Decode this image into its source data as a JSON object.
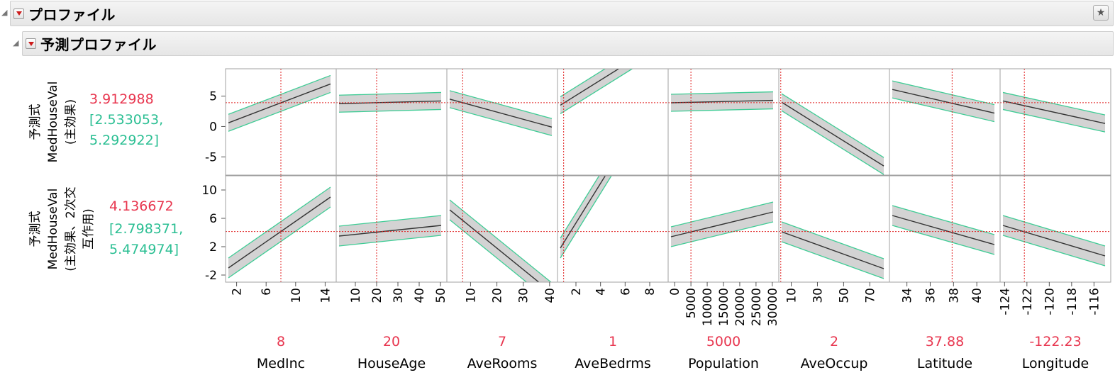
{
  "outer_title": "プロファイル",
  "inner_title": "予測プロファイル",
  "icons": {
    "disclosure": "disclosure-triangle-icon",
    "menu": "red-triangle-menu-icon",
    "pin": "pin-star-icon"
  },
  "colors": {
    "prediction_text": "#e8364f",
    "interval_text": "#2bbf93",
    "current_line": "#e02020",
    "band_fill": "#d3d3d3",
    "band_edge": "#3fcc95"
  },
  "rows": [
    {
      "label_lines": [
        "予測式",
        "MedHouseVal",
        "(主効果)"
      ],
      "prediction": "3.912988",
      "interval_lines": [
        "[2.533053,",
        "5.292922]"
      ],
      "y_ticks": [
        "5",
        "0",
        "-5"
      ],
      "y_tick_values": [
        5,
        0,
        -5
      ],
      "y_range": [
        -8.0,
        9.5
      ],
      "panel_lines": [
        [
          0.6,
          7.0
        ],
        [
          3.75,
          4.2
        ],
        [
          4.5,
          -0.1
        ],
        [
          3.5,
          14.0
        ],
        [
          3.9,
          4.3
        ],
        [
          4.0,
          -6.5
        ],
        [
          6.1,
          2.2
        ],
        [
          4.2,
          0.5
        ]
      ],
      "band_halfwidths": [
        1.4,
        1.4,
        1.4,
        1.4,
        1.4,
        1.4,
        1.4,
        1.4
      ]
    },
    {
      "label_lines": [
        "予測式",
        "MedHouseVal",
        "(主効果、2次交",
        "互作用)"
      ],
      "prediction": "4.136672",
      "interval_lines": [
        "[2.798371,",
        "5.474974]"
      ],
      "y_ticks": [
        "10",
        "6",
        "2",
        "-2"
      ],
      "y_tick_values": [
        10,
        6,
        2,
        -2
      ],
      "y_range": [
        -3.0,
        12.0
      ],
      "panel_lines": [
        [
          -1.0,
          9.0
        ],
        [
          3.5,
          5.0
        ],
        [
          7.2,
          -4.5
        ],
        [
          1.8,
          25.0
        ],
        [
          3.4,
          6.9
        ],
        [
          4.1,
          -1.1
        ],
        [
          6.4,
          2.3
        ],
        [
          5.0,
          0.7
        ]
      ],
      "band_halfwidths": [
        1.4,
        1.4,
        1.4,
        1.4,
        1.4,
        1.4,
        1.4,
        1.4
      ]
    }
  ],
  "factors": [
    {
      "name": "MedInc",
      "value": "8",
      "x_ticks": [
        "2",
        "6",
        "10",
        "14"
      ],
      "tick_values": [
        2,
        6,
        10,
        14
      ],
      "x_range": [
        0.5,
        15.5
      ],
      "current": 8
    },
    {
      "name": "HouseAge",
      "value": "20",
      "x_ticks": [
        "10",
        "20",
        "30",
        "40",
        "50"
      ],
      "tick_values": [
        10,
        20,
        30,
        40,
        50
      ],
      "x_range": [
        1,
        53
      ],
      "current": 20
    },
    {
      "name": "AveRooms",
      "value": "7",
      "x_ticks": [
        "10",
        "20",
        "30",
        "40"
      ],
      "tick_values": [
        10,
        20,
        30,
        40
      ],
      "x_range": [
        1,
        43
      ],
      "current": 7
    },
    {
      "name": "AveBedrms",
      "value": "1",
      "x_ticks": [
        "2",
        "4",
        "6",
        "8"
      ],
      "tick_values": [
        2,
        4,
        6,
        8
      ],
      "x_range": [
        0.5,
        9.5
      ],
      "current": 1
    },
    {
      "name": "Population",
      "value": "5000",
      "x_ticks": [
        "0",
        "5000",
        "10000",
        "15000",
        "20000",
        "25000",
        "30000"
      ],
      "tick_values": [
        0,
        5000,
        10000,
        15000,
        20000,
        25000,
        30000
      ],
      "x_range": [
        -2000,
        32000
      ],
      "current": 5000
    },
    {
      "name": "AveOccup",
      "value": "2",
      "x_ticks": [
        "10",
        "30",
        "50",
        "70"
      ],
      "tick_values": [
        10,
        30,
        50,
        70
      ],
      "x_range": [
        0.5,
        85
      ],
      "current": 2
    },
    {
      "name": "Latitude",
      "value": "37.88",
      "x_ticks": [
        "34",
        "36",
        "38",
        "40"
      ],
      "tick_values": [
        34,
        36,
        38,
        40
      ],
      "x_range": [
        32.5,
        42.0
      ],
      "current": 37.88
    },
    {
      "name": "Longitude",
      "value": "-122.23",
      "x_ticks": [
        "-124",
        "-122",
        "-120",
        "-118",
        "-116"
      ],
      "tick_values": [
        -124,
        -122,
        -120,
        -118,
        -116
      ],
      "x_range": [
        -124.4,
        -114.5
      ],
      "current": -122.23
    }
  ]
}
